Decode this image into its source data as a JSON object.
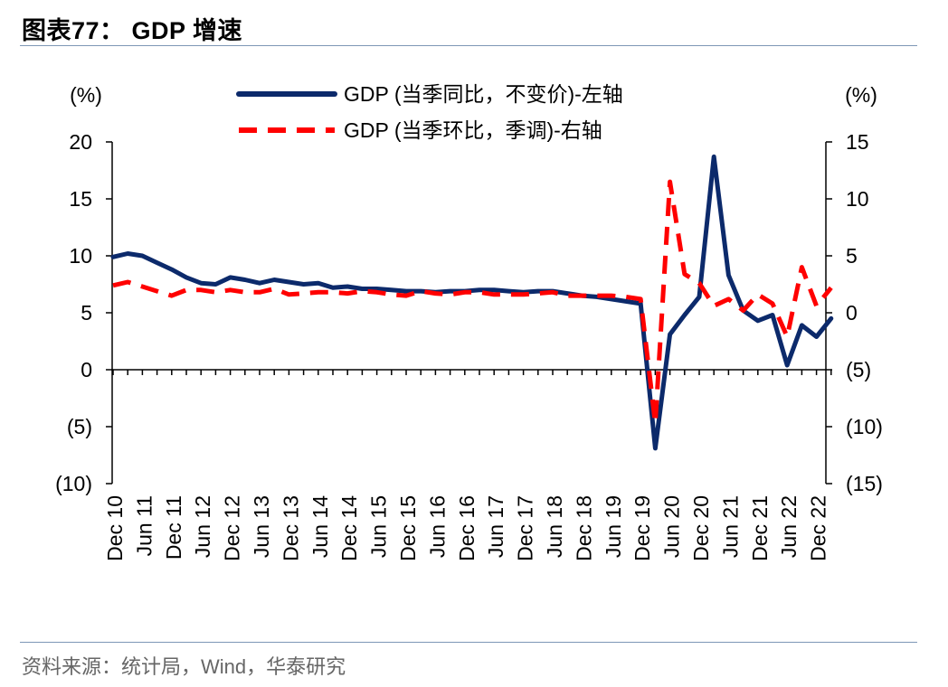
{
  "page_title": "图表77： GDP 增速",
  "source_note": "资料来源：统计局，Wind，华泰研究",
  "chart_data": {
    "type": "line",
    "left_unit": "(%)",
    "right_unit": "(%)",
    "left_ylim": [
      -10,
      20
    ],
    "right_ylim": [
      -15,
      15
    ],
    "left_ticks": [
      20,
      15,
      10,
      5,
      0,
      -5,
      -10
    ],
    "right_ticks": [
      15,
      10,
      5,
      0,
      -5,
      -10,
      -15
    ],
    "x_tick_labels": [
      "Dec 10",
      "Jun 11",
      "Dec 11",
      "Jun 12",
      "Dec 12",
      "Jun 13",
      "Dec 13",
      "Jun 14",
      "Dec 14",
      "Jun 15",
      "Dec 15",
      "Jun 16",
      "Dec 16",
      "Jun 17",
      "Dec 17",
      "Jun 18",
      "Dec 18",
      "Jun 19",
      "Dec 19",
      "Jun 20",
      "Dec 20",
      "Jun 21",
      "Dec 21",
      "Jun 22",
      "Dec 22"
    ],
    "quarters": [
      "Dec 10",
      "Mar 11",
      "Jun 11",
      "Sep 11",
      "Dec 11",
      "Mar 12",
      "Jun 12",
      "Sep 12",
      "Dec 12",
      "Mar 13",
      "Jun 13",
      "Sep 13",
      "Dec 13",
      "Mar 14",
      "Jun 14",
      "Sep 14",
      "Dec 14",
      "Mar 15",
      "Jun 15",
      "Sep 15",
      "Dec 15",
      "Mar 16",
      "Jun 16",
      "Sep 16",
      "Dec 16",
      "Mar 17",
      "Jun 17",
      "Sep 17",
      "Dec 17",
      "Mar 18",
      "Jun 18",
      "Sep 18",
      "Dec 18",
      "Mar 19",
      "Jun 19",
      "Sep 19",
      "Dec 19",
      "Mar 20",
      "Jun 20",
      "Sep 20",
      "Dec 20",
      "Mar 21",
      "Jun 21",
      "Sep 21",
      "Dec 21",
      "Mar 22",
      "Jun 22",
      "Sep 22",
      "Dec 22",
      "Mar 23"
    ],
    "series": [
      {
        "name": "GDP (当季同比，不变价)-左轴",
        "axis": "left",
        "color": "#0c2a6b",
        "dash": "solid",
        "values": [
          9.9,
          10.2,
          10.0,
          9.4,
          8.8,
          8.1,
          7.6,
          7.5,
          8.1,
          7.9,
          7.6,
          7.9,
          7.7,
          7.5,
          7.6,
          7.2,
          7.3,
          7.1,
          7.1,
          7.0,
          6.9,
          6.9,
          6.8,
          6.9,
          6.9,
          7.0,
          7.0,
          6.9,
          6.8,
          6.9,
          6.9,
          6.7,
          6.5,
          6.4,
          6.2,
          6.0,
          5.8,
          -6.9,
          3.1,
          4.8,
          6.4,
          18.7,
          8.3,
          5.2,
          4.3,
          4.8,
          0.4,
          3.9,
          2.9,
          4.5
        ]
      },
      {
        "name": "GDP (当季环比，季调)-右轴",
        "axis": "right",
        "color": "#ff0000",
        "dash": "dashed",
        "values": [
          2.4,
          2.7,
          2.3,
          1.9,
          1.5,
          2.0,
          2.0,
          1.8,
          2.0,
          1.8,
          1.8,
          2.1,
          1.6,
          1.7,
          1.8,
          1.8,
          1.7,
          1.9,
          1.8,
          1.6,
          1.5,
          1.9,
          1.7,
          1.6,
          1.8,
          1.8,
          1.6,
          1.6,
          1.6,
          1.7,
          1.8,
          1.5,
          1.5,
          1.5,
          1.5,
          1.4,
          1.2,
          -9.7,
          11.5,
          3.4,
          2.6,
          0.6,
          1.2,
          0.2,
          1.6,
          0.8,
          -2.1,
          4.0,
          0.6,
          2.2
        ]
      }
    ]
  }
}
